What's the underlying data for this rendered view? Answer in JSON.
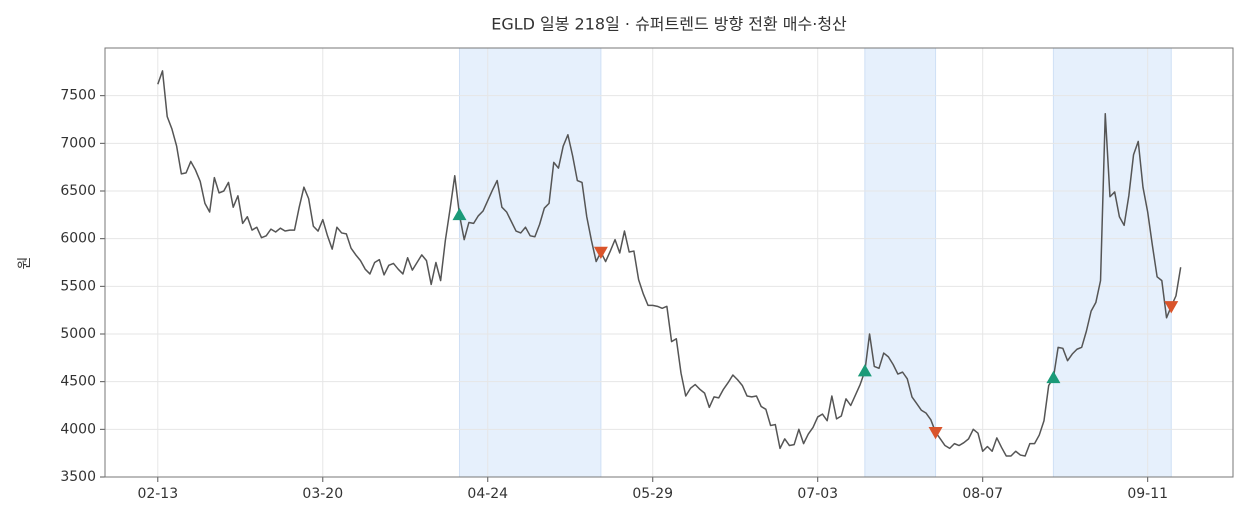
{
  "chart_data": {
    "type": "line",
    "title": "EGLD 일봉 218일 · 슈퍼트렌드 방향 전환 매수·청산",
    "y_label": "원",
    "categories": [
      "02-13",
      null,
      null,
      null,
      null,
      null,
      null,
      null,
      null,
      null,
      null,
      null,
      null,
      null,
      null,
      null,
      null,
      null,
      null,
      null,
      null,
      null,
      null,
      null,
      null,
      null,
      null,
      null,
      null,
      null,
      null,
      null,
      null,
      null,
      null,
      "03-20",
      null,
      null,
      null,
      null,
      null,
      null,
      null,
      null,
      null,
      null,
      null,
      null,
      null,
      null,
      null,
      null,
      null,
      null,
      null,
      null,
      null,
      null,
      null,
      null,
      null,
      null,
      null,
      null,
      null,
      null,
      null,
      null,
      null,
      null,
      "04-24",
      null,
      null,
      null,
      null,
      null,
      null,
      null,
      null,
      null,
      null,
      null,
      null,
      null,
      null,
      null,
      null,
      null,
      null,
      null,
      null,
      null,
      null,
      null,
      null,
      null,
      null,
      null,
      null,
      null,
      null,
      null,
      null,
      null,
      null,
      "05-29",
      null,
      null,
      null,
      null,
      null,
      null,
      null,
      null,
      null,
      null,
      null,
      null,
      null,
      null,
      null,
      null,
      null,
      null,
      null,
      null,
      null,
      null,
      null,
      null,
      null,
      null,
      null,
      null,
      null,
      null,
      null,
      null,
      null,
      null,
      "07-03",
      null,
      null,
      null,
      null,
      null,
      null,
      null,
      null,
      null,
      null,
      null,
      null,
      null,
      null,
      null,
      null,
      null,
      null,
      null,
      null,
      null,
      null,
      null,
      null,
      null,
      null,
      null,
      null,
      null,
      null,
      null,
      null,
      null,
      null,
      "08-07",
      null,
      null,
      null,
      null,
      null,
      null,
      null,
      null,
      null,
      null,
      null,
      null,
      null,
      null,
      null,
      null,
      null,
      null,
      null,
      null,
      null,
      null,
      null,
      null,
      null,
      null,
      null,
      null,
      null,
      null,
      null,
      null,
      null,
      null,
      "09-11",
      null,
      null,
      null,
      null,
      null,
      null,
      null
    ],
    "series": [
      {
        "color": "#555555",
        "values": [
          7620,
          7760,
          7280,
          7150,
          6970,
          6680,
          6690,
          6810,
          6720,
          6600,
          6370,
          6280,
          6640,
          6480,
          6500,
          6590,
          6330,
          6450,
          6160,
          6230,
          6090,
          6120,
          6010,
          6030,
          6100,
          6070,
          6110,
          6080,
          6090,
          6090,
          6330,
          6540,
          6420,
          6130,
          6080,
          6200,
          6030,
          5890,
          6120,
          6060,
          6050,
          5900,
          5830,
          5770,
          5680,
          5630,
          5750,
          5780,
          5620,
          5720,
          5740,
          5680,
          5630,
          5800,
          5670,
          5750,
          5830,
          5770,
          5520,
          5750,
          5560,
          5980,
          6310,
          6660,
          6250,
          5990,
          6170,
          6160,
          6240,
          6290,
          6400,
          6510,
          6610,
          6330,
          6280,
          6180,
          6080,
          6060,
          6120,
          6030,
          6020,
          6150,
          6320,
          6370,
          6800,
          6740,
          6970,
          7090,
          6870,
          6610,
          6590,
          6230,
          5980,
          5760,
          5860,
          5760,
          5870,
          5990,
          5850,
          6080,
          5860,
          5870,
          5570,
          5420,
          5300,
          5300,
          5290,
          5270,
          5290,
          4920,
          4950,
          4590,
          4350,
          4430,
          4470,
          4420,
          4380,
          4230,
          4340,
          4330,
          4420,
          4490,
          4570,
          4520,
          4460,
          4350,
          4340,
          4350,
          4240,
          4210,
          4040,
          4050,
          3800,
          3900,
          3830,
          3840,
          4000,
          3850,
          3950,
          4020,
          4130,
          4160,
          4090,
          4350,
          4110,
          4140,
          4320,
          4250,
          4360,
          4470,
          4610,
          5000,
          4660,
          4640,
          4800,
          4760,
          4680,
          4580,
          4600,
          4530,
          4340,
          4270,
          4200,
          4170,
          4100,
          3970,
          3900,
          3830,
          3800,
          3850,
          3830,
          3860,
          3900,
          4000,
          3960,
          3770,
          3820,
          3770,
          3910,
          3810,
          3720,
          3720,
          3770,
          3730,
          3720,
          3850,
          3850,
          3940,
          4090,
          4460,
          4540,
          4860,
          4850,
          4720,
          4790,
          4840,
          4860,
          5030,
          5240,
          5330,
          5560,
          7310,
          6440,
          6490,
          6230,
          6140,
          6450,
          6880,
          7020,
          6540,
          6280,
          5930,
          5600,
          5560,
          5170,
          5290,
          5400,
          5700
        ]
      },
      {
        "color": "#1a9a78",
        "marker": "triangle-up",
        "values": [
          null,
          null,
          null,
          null,
          null,
          null,
          null,
          null,
          null,
          null,
          null,
          null,
          null,
          null,
          null,
          null,
          null,
          null,
          null,
          null,
          null,
          null,
          null,
          null,
          null,
          null,
          null,
          null,
          null,
          null,
          null,
          null,
          null,
          null,
          null,
          null,
          null,
          null,
          null,
          null,
          null,
          null,
          null,
          null,
          null,
          null,
          null,
          null,
          null,
          null,
          null,
          null,
          null,
          null,
          null,
          null,
          null,
          null,
          null,
          null,
          null,
          null,
          null,
          null,
          6250,
          null,
          null,
          null,
          null,
          null,
          null,
          null,
          null,
          null,
          null,
          null,
          null,
          null,
          null,
          null,
          null,
          null,
          null,
          null,
          null,
          null,
          null,
          null,
          null,
          null,
          null,
          null,
          null,
          null,
          null,
          null,
          null,
          null,
          null,
          null,
          null,
          null,
          null,
          null,
          null,
          null,
          null,
          null,
          null,
          null,
          null,
          null,
          null,
          null,
          null,
          null,
          null,
          null,
          null,
          null,
          null,
          null,
          null,
          null,
          null,
          null,
          null,
          null,
          null,
          null,
          null,
          null,
          null,
          null,
          null,
          null,
          null,
          null,
          null,
          null,
          null,
          null,
          null,
          null,
          null,
          null,
          null,
          null,
          null,
          null,
          4610,
          null,
          null,
          null,
          null,
          null,
          null,
          null,
          null,
          null,
          null,
          null,
          null,
          null,
          null,
          null,
          null,
          null,
          null,
          null,
          null,
          null,
          null,
          null,
          null,
          null,
          null,
          null,
          null,
          null,
          null,
          null,
          null,
          null,
          null,
          null,
          null,
          null,
          null,
          null,
          4540,
          null,
          null,
          null,
          null,
          null,
          null,
          null,
          null,
          null,
          null,
          null,
          null,
          null,
          null,
          null,
          null,
          null,
          null,
          null,
          null,
          null,
          null,
          null,
          null,
          null,
          null,
          null
        ]
      },
      {
        "color": "#d9542b",
        "marker": "triangle-down",
        "values": [
          null,
          null,
          null,
          null,
          null,
          null,
          null,
          null,
          null,
          null,
          null,
          null,
          null,
          null,
          null,
          null,
          null,
          null,
          null,
          null,
          null,
          null,
          null,
          null,
          null,
          null,
          null,
          null,
          null,
          null,
          null,
          null,
          null,
          null,
          null,
          null,
          null,
          null,
          null,
          null,
          null,
          null,
          null,
          null,
          null,
          null,
          null,
          null,
          null,
          null,
          null,
          null,
          null,
          null,
          null,
          null,
          null,
          null,
          null,
          null,
          null,
          null,
          null,
          null,
          null,
          null,
          null,
          null,
          null,
          null,
          null,
          null,
          null,
          null,
          null,
          null,
          null,
          null,
          null,
          null,
          null,
          null,
          null,
          null,
          null,
          null,
          null,
          null,
          null,
          null,
          null,
          null,
          null,
          null,
          5860,
          null,
          null,
          null,
          null,
          null,
          null,
          null,
          null,
          null,
          null,
          null,
          null,
          null,
          null,
          null,
          null,
          null,
          null,
          null,
          null,
          null,
          null,
          null,
          null,
          null,
          null,
          null,
          null,
          null,
          null,
          null,
          null,
          null,
          null,
          null,
          null,
          null,
          null,
          null,
          null,
          null,
          null,
          null,
          null,
          null,
          null,
          null,
          null,
          null,
          null,
          null,
          null,
          null,
          null,
          null,
          null,
          null,
          null,
          null,
          null,
          null,
          null,
          null,
          null,
          null,
          null,
          null,
          null,
          null,
          null,
          3970,
          null,
          null,
          null,
          null,
          null,
          null,
          null,
          null,
          null,
          null,
          null,
          null,
          null,
          null,
          null,
          null,
          null,
          null,
          null,
          null,
          null,
          null,
          null,
          null,
          null,
          null,
          null,
          null,
          null,
          null,
          null,
          null,
          null,
          null,
          null,
          null,
          null,
          null,
          null,
          null,
          null,
          null,
          null,
          null,
          null,
          null,
          null,
          null,
          null,
          5290,
          null,
          null
        ]
      }
    ],
    "shade_color": "#e6f0fc",
    "ylim": [
      3500,
      8000
    ],
    "yticks": [
      3500,
      4000,
      4500,
      5000,
      5500,
      6000,
      6500,
      7000,
      7500
    ],
    "grid": true
  }
}
